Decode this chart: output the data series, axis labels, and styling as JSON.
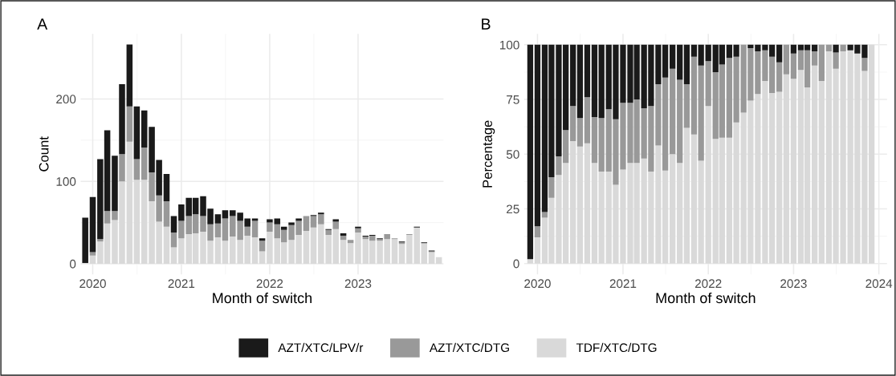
{
  "chart_data": [
    {
      "type": "bar",
      "title": "A",
      "xlabel": "Month of switch",
      "ylabel": "Count",
      "stacked": true,
      "grid": true,
      "legend": "bottom",
      "x": [
        "2019-12",
        "2020-01",
        "2020-02",
        "2020-03",
        "2020-04",
        "2020-05",
        "2020-06",
        "2020-07",
        "2020-08",
        "2020-09",
        "2020-10",
        "2020-11",
        "2020-12",
        "2021-01",
        "2021-02",
        "2021-03",
        "2021-04",
        "2021-05",
        "2021-06",
        "2021-07",
        "2021-08",
        "2021-09",
        "2021-10",
        "2021-11",
        "2021-12",
        "2022-01",
        "2022-02",
        "2022-03",
        "2022-04",
        "2022-05",
        "2022-06",
        "2022-07",
        "2022-08",
        "2022-09",
        "2022-10",
        "2022-11",
        "2022-12",
        "2023-01",
        "2023-02",
        "2023-03",
        "2023-04",
        "2023-05",
        "2023-06",
        "2023-07",
        "2023-08",
        "2023-09",
        "2023-10",
        "2023-11",
        "2023-12"
      ],
      "xlim": [
        "2019-11-12",
        "2023-12-20"
      ],
      "xticks": [
        {
          "value": "2020-01-01",
          "label": "2020"
        },
        {
          "value": "2021-01-01",
          "label": "2021"
        },
        {
          "value": "2022-01-01",
          "label": "2022"
        },
        {
          "value": "2023-01-01",
          "label": "2023"
        }
      ],
      "ylim": [
        -13,
        279
      ],
      "yticks": [
        0,
        100,
        200
      ],
      "series": [
        {
          "name": "TDF/XTC/DTG",
          "color": "#d9d9d9",
          "values": [
            1,
            10,
            27,
            49,
            53,
            100,
            148,
            102,
            102,
            76,
            51,
            45,
            20,
            31,
            36,
            37,
            39,
            28,
            32,
            28,
            33,
            29,
            34,
            32,
            15,
            39,
            31,
            26,
            29,
            35,
            40,
            44,
            48,
            35,
            42,
            29,
            25,
            38,
            30,
            28,
            28,
            30,
            30,
            24,
            35,
            44,
            25,
            14,
            8
          ]
        },
        {
          "name": "AZT/XTC/DTG",
          "color": "#999999",
          "values": [
            0,
            4,
            3,
            15,
            11,
            33,
            43,
            25,
            39,
            35,
            32,
            31,
            18,
            21,
            22,
            23,
            19,
            20,
            17,
            27,
            25,
            23,
            11,
            20,
            13,
            11,
            17,
            15,
            18,
            17,
            18,
            14,
            12,
            6,
            9,
            5,
            4,
            5,
            3,
            6,
            2,
            6,
            1,
            2,
            1,
            0,
            0,
            1,
            0
          ]
        },
        {
          "name": "AZT/XTC/LPV/r",
          "color": "#1a1a1a",
          "values": [
            55,
            67,
            97,
            98,
            67,
            85,
            75,
            64,
            45,
            55,
            43,
            33,
            20,
            20,
            22,
            20,
            24,
            19,
            11,
            10,
            7,
            10,
            10,
            3,
            3,
            4,
            7,
            4,
            3,
            3,
            0,
            1,
            2,
            1,
            3,
            3,
            0,
            2,
            1,
            1,
            1,
            0,
            0,
            1,
            0,
            1,
            1,
            1,
            0
          ]
        }
      ]
    },
    {
      "type": "bar",
      "title": "B",
      "xlabel": "Month of switch",
      "ylabel": "Percentage",
      "stacked": true,
      "grid": true,
      "x": [
        "2019-12",
        "2020-01",
        "2020-02",
        "2020-03",
        "2020-04",
        "2020-05",
        "2020-06",
        "2020-07",
        "2020-08",
        "2020-09",
        "2020-10",
        "2020-11",
        "2020-12",
        "2021-01",
        "2021-02",
        "2021-03",
        "2021-04",
        "2021-05",
        "2021-06",
        "2021-07",
        "2021-08",
        "2021-09",
        "2021-10",
        "2021-11",
        "2021-12",
        "2022-01",
        "2022-02",
        "2022-03",
        "2022-04",
        "2022-05",
        "2022-06",
        "2022-07",
        "2022-08",
        "2022-09",
        "2022-10",
        "2022-11",
        "2022-12",
        "2023-01",
        "2023-02",
        "2023-03",
        "2023-04",
        "2023-05",
        "2023-06",
        "2023-07",
        "2023-08",
        "2023-09",
        "2023-10",
        "2023-11",
        "2023-12"
      ],
      "xlim": [
        "2019-11-05",
        "2024-02-05"
      ],
      "xticks": [
        {
          "value": "2020-01-01",
          "label": "2020"
        },
        {
          "value": "2021-01-01",
          "label": "2021"
        },
        {
          "value": "2022-01-01",
          "label": "2022"
        },
        {
          "value": "2023-01-01",
          "label": "2023"
        },
        {
          "value": "2024-01-01",
          "label": "2024"
        }
      ],
      "ylim": [
        -5,
        105
      ],
      "yticks": [
        0,
        25,
        50,
        75,
        100
      ],
      "series": [
        {
          "color": "#d9d9d9",
          "values": [
            2,
            12,
            21,
            30,
            40.5,
            46,
            56,
            53.5,
            55,
            46,
            42,
            42,
            36,
            43,
            46,
            46,
            48,
            42,
            54,
            42.5,
            50,
            46,
            62,
            59,
            47,
            72,
            57,
            57.5,
            57.5,
            64.5,
            69,
            74.5,
            77.5,
            83.5,
            78,
            78.5,
            86.5,
            84.5,
            88.5,
            80.5,
            90.5,
            83.5,
            97,
            89,
            97,
            97.5,
            96,
            88,
            100
          ]
        },
        {
          "color": "#999999",
          "values": [
            0,
            5,
            2.5,
            9.5,
            8.5,
            15,
            16,
            13,
            21,
            21,
            24.5,
            28.5,
            30,
            30.5,
            27.5,
            29,
            23,
            30,
            28,
            42.5,
            39,
            38,
            20,
            35.5,
            43.5,
            20.5,
            30.5,
            33.5,
            36.5,
            30,
            31,
            24,
            19.5,
            14,
            16.5,
            13.5,
            13.5,
            11.5,
            9,
            17,
            6.5,
            16.5,
            3,
            7.5,
            3,
            0,
            0,
            6,
            0
          ]
        },
        {
          "color": "#1a1a1a",
          "values": [
            98,
            83,
            76.5,
            60.5,
            51,
            39,
            28,
            33.5,
            24,
            33,
            33.5,
            29.5,
            34,
            26.5,
            26.5,
            25,
            29,
            28,
            18,
            15,
            11,
            16,
            18,
            5.5,
            9.5,
            7.5,
            12.5,
            9,
            6,
            5.5,
            0,
            1.5,
            3,
            2.5,
            5.5,
            8,
            0,
            4,
            2.5,
            2.5,
            3,
            0,
            0,
            3.5,
            0,
            2.5,
            4,
            6,
            0
          ]
        }
      ]
    }
  ]
}
